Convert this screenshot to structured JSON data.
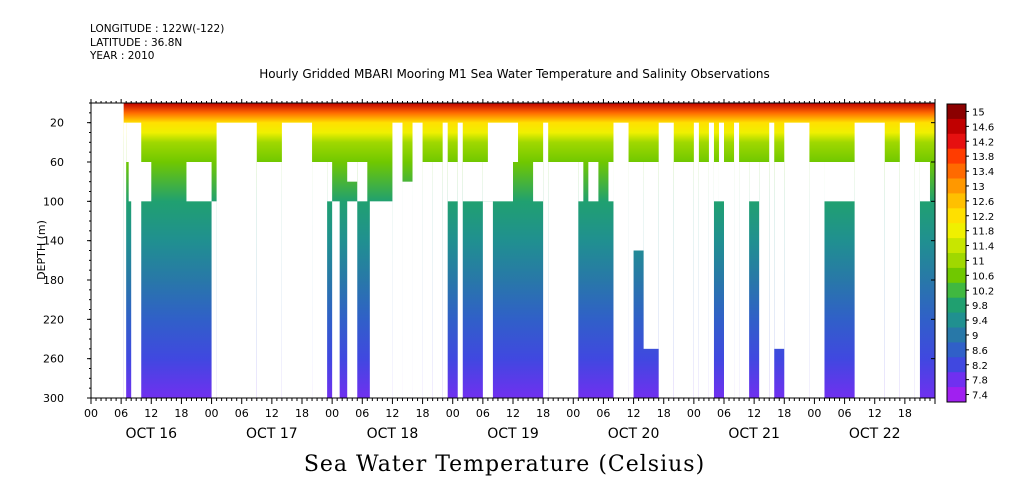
{
  "header": {
    "longitude": "LONGITUDE : 122W(-122)",
    "latitude": "LATITUDE : 36.8N",
    "year": "YEAR : 2010"
  },
  "chart_data": {
    "type": "heatmap",
    "title": "Hourly Gridded MBARI Mooring M1 Sea Water Temperature and Salinity Observations",
    "bottom_title": "Sea Water Temperature (Celsius)",
    "ylabel": "DEPTH (m)",
    "xlabel": "",
    "ylim": [
      300,
      0
    ],
    "yticks": [
      20,
      60,
      100,
      140,
      180,
      220,
      260,
      300
    ],
    "xlim_hours": [
      0,
      168
    ],
    "x_hour_ticks": [
      "00",
      "06",
      "12",
      "18",
      "00",
      "06",
      "12",
      "18",
      "00",
      "06",
      "12",
      "18",
      "00",
      "06",
      "12",
      "18",
      "00",
      "06",
      "12",
      "18",
      "00",
      "06",
      "12",
      "18",
      "00",
      "06",
      "12",
      "18"
    ],
    "day_labels": [
      "OCT 16",
      "OCT 17",
      "OCT 18",
      "OCT 19",
      "OCT 20",
      "OCT 21",
      "OCT 22"
    ],
    "colorbar": {
      "levels": [
        "15",
        "14.6",
        "14.2",
        "13.8",
        "13.4",
        "13",
        "12.6",
        "12.2",
        "11.8",
        "11.4",
        "11",
        "10.6",
        "10.2",
        "9.8",
        "9.4",
        "9",
        "8.6",
        "8.2",
        "7.8",
        "7.4"
      ],
      "colors": [
        "#8b0000",
        "#c00000",
        "#e61010",
        "#ff3c00",
        "#ff6a00",
        "#ff9800",
        "#ffc000",
        "#ffe000",
        "#f0f000",
        "#c8e600",
        "#a0d800",
        "#70c800",
        "#40b840",
        "#20a070",
        "#209090",
        "#2878a8",
        "#3060c8",
        "#4048e0",
        "#7030f0",
        "#a020f0"
      ]
    },
    "temperature_profile": {
      "depths_m": [
        0,
        10,
        20,
        30,
        40,
        60,
        100,
        140,
        180,
        220,
        260,
        300
      ],
      "values_c": [
        14.8,
        13.6,
        12.4,
        11.8,
        11.2,
        10.8,
        10.0,
        9.6,
        9.2,
        8.8,
        8.4,
        7.8
      ]
    },
    "missing_data_blocks": [
      {
        "h0": 0,
        "h1": 6.5,
        "d0": 0,
        "d1": 300
      },
      {
        "h0": 6.5,
        "h1": 7,
        "d0": 20,
        "d1": 300
      },
      {
        "h0": 7,
        "h1": 10,
        "d0": 20,
        "d1": 60
      },
      {
        "h0": 8,
        "h1": 10,
        "d0": 60,
        "d1": 300
      },
      {
        "h0": 7.5,
        "h1": 12,
        "d0": 60,
        "d1": 100
      },
      {
        "h0": 19,
        "h1": 24,
        "d0": 60,
        "d1": 100
      },
      {
        "h0": 24,
        "h1": 25,
        "d0": 100,
        "d1": 300
      },
      {
        "h0": 25,
        "h1": 33,
        "d0": 20,
        "d1": 300
      },
      {
        "h0": 33,
        "h1": 38,
        "d0": 60,
        "d1": 300
      },
      {
        "h0": 38,
        "h1": 44,
        "d0": 20,
        "d1": 300
      },
      {
        "h0": 44,
        "h1": 47,
        "d0": 60,
        "d1": 300
      },
      {
        "h0": 47,
        "h1": 48,
        "d0": 60,
        "d1": 100
      },
      {
        "h0": 48,
        "h1": 49.5,
        "d0": 100,
        "d1": 300
      },
      {
        "h0": 51,
        "h1": 53,
        "d0": 60,
        "d1": 80
      },
      {
        "h0": 53,
        "h1": 55,
        "d0": 60,
        "d1": 100
      },
      {
        "h0": 51,
        "h1": 53,
        "d0": 100,
        "d1": 300
      },
      {
        "h0": 55.5,
        "h1": 60,
        "d0": 100,
        "d1": 300
      },
      {
        "h0": 60,
        "h1": 62,
        "d0": 20,
        "d1": 300
      },
      {
        "h0": 62,
        "h1": 64,
        "d0": 80,
        "d1": 300
      },
      {
        "h0": 64,
        "h1": 66,
        "d0": 20,
        "d1": 300
      },
      {
        "h0": 66,
        "h1": 68,
        "d0": 60,
        "d1": 300
      },
      {
        "h0": 68,
        "h1": 70,
        "d0": 60,
        "d1": 300
      },
      {
        "h0": 70,
        "h1": 71,
        "d0": 20,
        "d1": 300
      },
      {
        "h0": 71,
        "h1": 73,
        "d0": 60,
        "d1": 100
      },
      {
        "h0": 73,
        "h1": 74,
        "d0": 20,
        "d1": 300
      },
      {
        "h0": 74,
        "h1": 78,
        "d0": 60,
        "d1": 100
      },
      {
        "h0": 78,
        "h1": 84,
        "d0": 60,
        "d1": 100
      },
      {
        "h0": 78,
        "h1": 80,
        "d0": 100,
        "d1": 300
      },
      {
        "h0": 79,
        "h1": 85,
        "d0": 20,
        "d1": 60
      },
      {
        "h0": 88,
        "h1": 90,
        "d0": 60,
        "d1": 100
      },
      {
        "h0": 90,
        "h1": 91,
        "d0": 20,
        "d1": 300
      },
      {
        "h0": 91,
        "h1": 97,
        "d0": 60,
        "d1": 300
      },
      {
        "h0": 97,
        "h1": 98,
        "d0": 60,
        "d1": 100
      },
      {
        "h0": 99,
        "h1": 101,
        "d0": 60,
        "d1": 100
      },
      {
        "h0": 103,
        "h1": 104,
        "d0": 60,
        "d1": 100
      },
      {
        "h0": 104,
        "h1": 107,
        "d0": 20,
        "d1": 300
      },
      {
        "h0": 107,
        "h1": 110,
        "d0": 60,
        "d1": 150
      },
      {
        "h0": 107,
        "h1": 108,
        "d0": 150,
        "d1": 300
      },
      {
        "h0": 110,
        "h1": 113,
        "d0": 60,
        "d1": 250
      },
      {
        "h0": 113,
        "h1": 116,
        "d0": 20,
        "d1": 300
      },
      {
        "h0": 116,
        "h1": 120,
        "d0": 60,
        "d1": 300
      },
      {
        "h0": 120,
        "h1": 121,
        "d0": 20,
        "d1": 300
      },
      {
        "h0": 121,
        "h1": 123,
        "d0": 60,
        "d1": 300
      },
      {
        "h0": 123,
        "h1": 124,
        "d0": 20,
        "d1": 300
      },
      {
        "h0": 124,
        "h1": 125,
        "d0": 60,
        "d1": 100
      },
      {
        "h0": 125,
        "h1": 126,
        "d0": 20,
        "d1": 100
      },
      {
        "h0": 126,
        "h1": 128,
        "d0": 60,
        "d1": 300
      },
      {
        "h0": 128,
        "h1": 129,
        "d0": 20,
        "d1": 300
      },
      {
        "h0": 129,
        "h1": 131,
        "d0": 60,
        "d1": 300
      },
      {
        "h0": 131,
        "h1": 133,
        "d0": 60,
        "d1": 100
      },
      {
        "h0": 133,
        "h1": 135,
        "d0": 60,
        "d1": 300
      },
      {
        "h0": 135,
        "h1": 136,
        "d0": 20,
        "d1": 300
      },
      {
        "h0": 136,
        "h1": 138,
        "d0": 60,
        "d1": 250
      },
      {
        "h0": 138,
        "h1": 143,
        "d0": 20,
        "d1": 300
      },
      {
        "h0": 143,
        "h1": 146,
        "d0": 60,
        "d1": 300
      },
      {
        "h0": 146,
        "h1": 152,
        "d0": 60,
        "d1": 100
      },
      {
        "h0": 152,
        "h1": 158,
        "d0": 20,
        "d1": 300
      },
      {
        "h0": 158,
        "h1": 161,
        "d0": 60,
        "d1": 300
      },
      {
        "h0": 161,
        "h1": 164,
        "d0": 20,
        "d1": 300
      },
      {
        "h0": 164,
        "h1": 165,
        "d0": 60,
        "d1": 300
      },
      {
        "h0": 165,
        "h1": 167,
        "d0": 60,
        "d1": 100
      }
    ]
  }
}
